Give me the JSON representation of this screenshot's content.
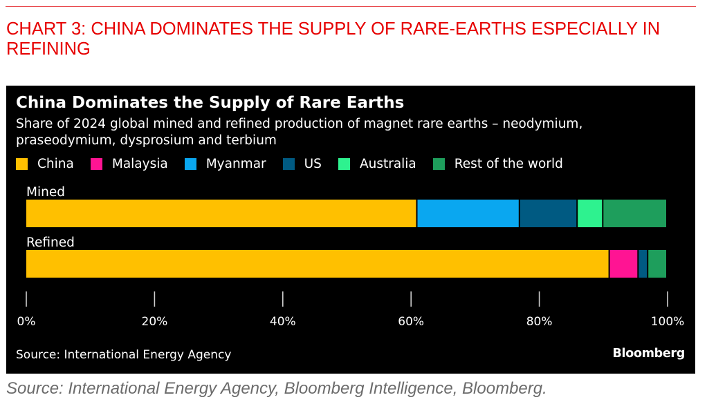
{
  "header": {
    "title": "CHART 3: CHINA DOMINATES THE SUPPLY OF RARE-EARTHS ESPECIALLY IN REFINING"
  },
  "footer": {
    "source": "Source: International Energy Agency, Bloomberg Intelligence, Bloomberg."
  },
  "panel": {
    "source": "Source: International Energy Agency",
    "brand": "Bloomberg"
  },
  "chart_data": {
    "type": "bar",
    "orientation": "horizontal",
    "stacked": true,
    "title": "China Dominates the Supply of Rare Earths",
    "subtitle": "Share of 2024 global mined and refined production of magnet rare earths – neodymium, praseodymium, dysprosium and terbium",
    "categories": [
      "Mined",
      "Refined"
    ],
    "series": [
      {
        "name": "China",
        "color": "#ffc000",
        "values": [
          61,
          91
        ]
      },
      {
        "name": "Malaysia",
        "color": "#ff1493",
        "values": [
          0,
          4.5
        ]
      },
      {
        "name": "Myanmar",
        "color": "#0aa7f0",
        "values": [
          16,
          0
        ]
      },
      {
        "name": "US",
        "color": "#005a82",
        "values": [
          9,
          1.5
        ]
      },
      {
        "name": "Australia",
        "color": "#2ef28f",
        "values": [
          4,
          0
        ]
      },
      {
        "name": "Rest of the world",
        "color": "#1e9e5c",
        "values": [
          10,
          3
        ]
      }
    ],
    "xlim": [
      0,
      100
    ],
    "xticks": [
      "0%",
      "20%",
      "40%",
      "60%",
      "80%",
      "100%"
    ],
    "xtick_values": [
      0,
      20,
      40,
      60,
      80,
      100
    ],
    "legend_position": "top",
    "background": "#000000",
    "grid": false
  }
}
